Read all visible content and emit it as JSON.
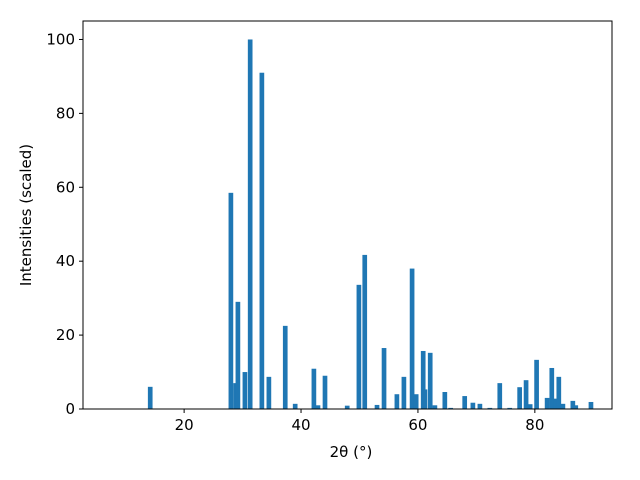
{
  "chart_data": {
    "type": "bar",
    "x": [
      14.2,
      28.0,
      28.8,
      29.2,
      30.4,
      31.3,
      33.3,
      34.5,
      37.3,
      39.0,
      42.2,
      42.9,
      44.1,
      47.9,
      49.9,
      50.9,
      53.0,
      54.2,
      56.4,
      57.6,
      59.0,
      59.7,
      60.9,
      61.2,
      62.1,
      62.9,
      64.6,
      65.6,
      68.0,
      69.4,
      70.6,
      72.3,
      74.0,
      75.7,
      77.4,
      78.5,
      79.2,
      80.3,
      82.1,
      82.9,
      83.6,
      84.1,
      84.8,
      86.5,
      87.0,
      89.6
    ],
    "values": [
      6.0,
      58.5,
      7.0,
      29.0,
      10.0,
      100,
      91.0,
      8.7,
      22.5,
      1.4,
      10.9,
      1.0,
      9.0,
      0.9,
      33.6,
      41.7,
      1.1,
      16.5,
      4.0,
      8.7,
      38.0,
      4.0,
      15.7,
      5.3,
      15.2,
      1.0,
      4.6,
      0.3,
      3.5,
      1.7,
      1.4,
      0.3,
      7.0,
      0.3,
      5.9,
      7.8,
      1.3,
      13.3,
      3.0,
      11.1,
      2.8,
      8.7,
      1.4,
      2.2,
      1.0,
      1.9
    ],
    "color": "#1f77b4",
    "xlabel": "2θ (°)",
    "ylabel": "Intensities (scaled)",
    "xlim": [
      2.7,
      93.2
    ],
    "ylim": [
      0,
      105
    ],
    "xticks": [
      20,
      40,
      60,
      80
    ],
    "yticks": [
      0,
      20,
      40,
      60,
      80,
      100
    ]
  }
}
